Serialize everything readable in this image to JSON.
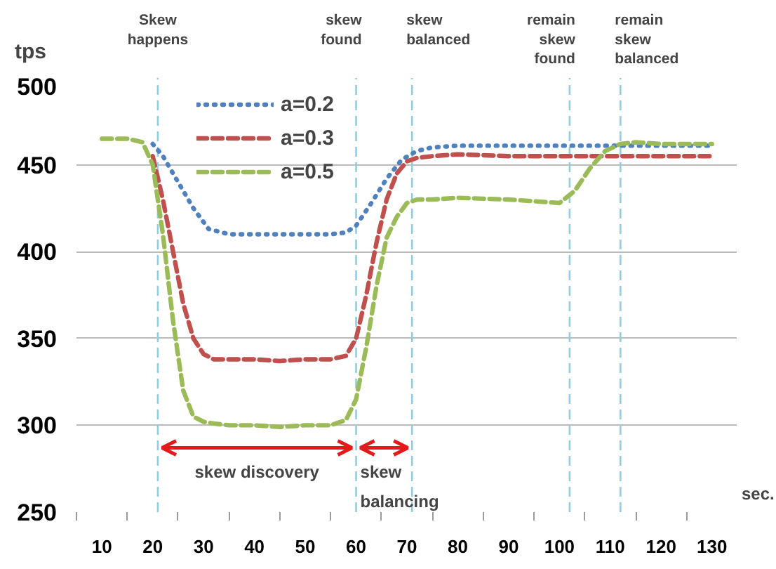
{
  "chart_data": {
    "type": "line",
    "xlabel": "sec.",
    "ylabel": "tps",
    "xlim": [
      5,
      135
    ],
    "xticks": [
      10,
      20,
      30,
      40,
      50,
      60,
      70,
      80,
      90,
      100,
      110,
      120,
      130
    ],
    "ylim": [
      250,
      500
    ],
    "yticks": [
      250,
      300,
      350,
      400,
      450,
      500
    ],
    "grid": "y",
    "legend": "top left",
    "series": [
      {
        "name": "a=0.2",
        "color": "#4f81bd",
        "line_style": "dotted",
        "x": [
          20,
          22,
          25,
          28,
          31,
          35,
          40,
          45,
          50,
          55,
          58,
          60,
          63,
          66,
          69,
          72,
          75,
          80,
          90,
          100,
          110,
          120,
          130
        ],
        "values": [
          462,
          455,
          440,
          425,
          413,
          410,
          410,
          410,
          410,
          410,
          411,
          415,
          428,
          442,
          453,
          458,
          460,
          461,
          461,
          461,
          461,
          461,
          461
        ]
      },
      {
        "name": "a=0.3",
        "color": "#c0504d",
        "line_style": "dashed",
        "x": [
          20,
          22,
          24,
          26,
          28,
          30,
          32,
          35,
          40,
          45,
          50,
          55,
          58,
          60,
          62,
          64,
          66,
          68,
          70,
          72,
          75,
          80,
          90,
          100,
          110,
          120,
          130
        ],
        "values": [
          455,
          430,
          400,
          370,
          350,
          341,
          338,
          338,
          338,
          337,
          338,
          338,
          340,
          350,
          375,
          405,
          430,
          445,
          452,
          454,
          455,
          456,
          455,
          455,
          455,
          455,
          455
        ]
      },
      {
        "name": "a=0.5",
        "color": "#9bbb59",
        "line_style": "dashed",
        "x": [
          10,
          15,
          18,
          20,
          22,
          24,
          26,
          28,
          30,
          32,
          35,
          40,
          45,
          50,
          55,
          58,
          60,
          62,
          64,
          66,
          68,
          70,
          72,
          75,
          80,
          90,
          100,
          103,
          106,
          109,
          112,
          115,
          120,
          130
        ],
        "values": [
          465,
          465,
          463,
          450,
          410,
          360,
          320,
          305,
          302,
          301,
          300,
          300,
          299,
          300,
          300,
          303,
          315,
          345,
          380,
          408,
          420,
          428,
          430,
          430,
          431,
          430,
          428,
          435,
          448,
          458,
          462,
          463,
          462,
          462
        ]
      }
    ],
    "ref_lines": [
      {
        "axis": "x",
        "value": 21,
        "label": "Skew\nhappens",
        "color": "#92cddc",
        "line_style": "dashed"
      },
      {
        "axis": "x",
        "value": 60,
        "label": "skew\nfound",
        "color": "#92cddc",
        "line_style": "dashed"
      },
      {
        "axis": "x",
        "value": 71,
        "label": "skew\nbalanced",
        "color": "#92cddc",
        "line_style": "dashed"
      },
      {
        "axis": "x",
        "value": 102,
        "label": "remain\nskew\nfound",
        "color": "#92cddc",
        "line_style": "dashed"
      },
      {
        "axis": "x",
        "value": 112,
        "label": "remain\nskew\nbalanced",
        "color": "#92cddc",
        "line_style": "dashed"
      }
    ],
    "annotations": [
      {
        "text": "skew discovery",
        "x": 60,
        "y": 287
      },
      {
        "text": "skew\nbalancing",
        "x": 71,
        "y": 287
      }
    ]
  }
}
